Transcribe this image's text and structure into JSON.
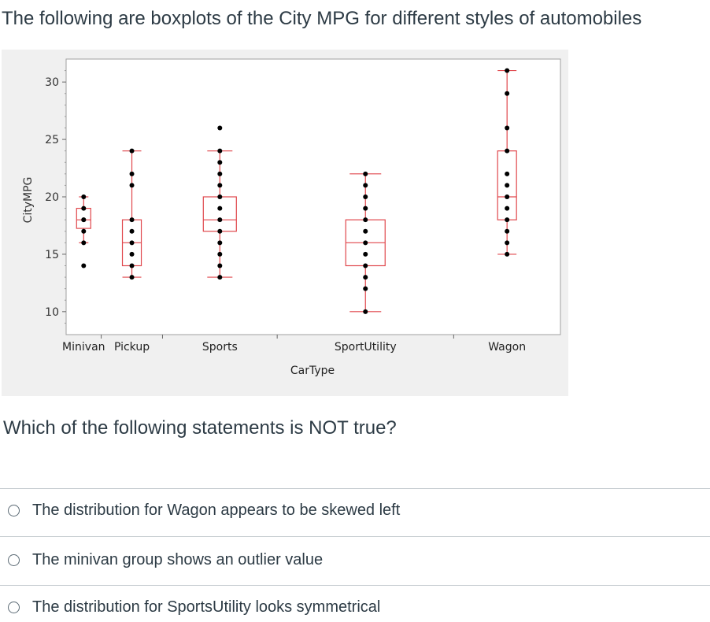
{
  "header": {
    "title": "The following are boxplots of the City MPG for different styles of automobiles"
  },
  "question": {
    "text": "Which of the following statements is NOT true?"
  },
  "options": [
    {
      "label": "The distribution for Wagon appears to be skewed left"
    },
    {
      "label": "The minivan group shows an outlier value"
    },
    {
      "label": "The distribution for SportsUtility looks symmetrical"
    }
  ],
  "colors": {
    "box": "#e0474c",
    "point": "#000000",
    "panel": "#f0f0f0",
    "frame": "#a0a0a0"
  },
  "chart_data": {
    "type": "boxplot",
    "title": "",
    "xlabel": "CarType",
    "ylabel": "CityMPG",
    "ylim": [
      8,
      32
    ],
    "yticks": [
      10,
      15,
      20,
      25,
      30
    ],
    "categories": [
      "Minivan",
      "Pickup",
      "Sports",
      "SportUtility",
      "Wagon"
    ],
    "category_widths": [
      0.071,
      0.124,
      0.232,
      0.357,
      0.216
    ],
    "boxes": [
      {
        "name": "Minivan",
        "min": 16,
        "q1": 17.25,
        "median": 18,
        "q3": 19,
        "max": 20,
        "outliers": [
          14
        ],
        "points": [
          16,
          17,
          18,
          18,
          19,
          20,
          14
        ]
      },
      {
        "name": "Pickup",
        "min": 13,
        "q1": 14,
        "median": 16,
        "q3": 18,
        "max": 24,
        "outliers": [],
        "points": [
          13,
          14,
          15,
          16,
          17,
          18,
          21,
          22,
          24
        ]
      },
      {
        "name": "Sports",
        "min": 13,
        "q1": 17,
        "median": 18,
        "q3": 20,
        "max": 24,
        "outliers": [
          26
        ],
        "points": [
          13,
          14,
          15,
          16,
          17,
          18,
          19,
          20,
          21,
          22,
          23,
          24,
          26
        ]
      },
      {
        "name": "SportUtility",
        "min": 10,
        "q1": 14,
        "median": 16,
        "q3": 18,
        "max": 22,
        "outliers": [],
        "points": [
          10,
          12,
          13,
          14,
          15,
          16,
          17,
          18,
          19,
          20,
          21,
          22
        ]
      },
      {
        "name": "Wagon",
        "min": 15,
        "q1": 18,
        "median": 20,
        "q3": 24,
        "max": 31,
        "outliers": [],
        "points": [
          15,
          16,
          17,
          18,
          19,
          20,
          21,
          22,
          24,
          26,
          29,
          31
        ]
      }
    ]
  }
}
